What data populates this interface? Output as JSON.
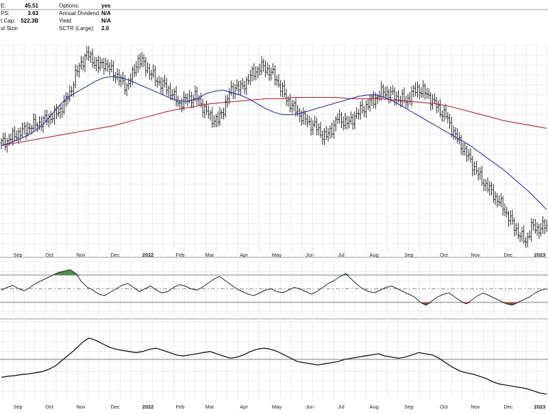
{
  "info": [
    {
      "label": "E:",
      "value": "45.51",
      "label2": "Options:",
      "value2": "yes"
    },
    {
      "label": "PS:",
      "value": "3.63",
      "label2": "Annual Dividend:",
      "value2": "N/A"
    },
    {
      "label": "t Cap:",
      "value": "522.3B",
      "label2": "Yield:",
      "value2": "N/A"
    },
    {
      "label": "st Size:",
      "value": "",
      "label2": "SCTR (Large):",
      "value2": "2.0"
    }
  ],
  "colors": {
    "price": "#111111",
    "ma_fast": "#2b2bb0",
    "ma_slow": "#b0243a",
    "osc_fill_up": "#4f8a4f",
    "osc_fill_down": "#a04444",
    "grid": "#d9d9d9",
    "border": "#9a9a9a"
  },
  "chart_data": [
    {
      "type": "line",
      "panel": "price",
      "x_ticks": [
        "Sep",
        "Oct",
        "Nov",
        "Dec",
        "2022",
        "Feb",
        "Mar",
        "Apr",
        "May",
        "Jun",
        "Jul",
        "Aug",
        "Sep",
        "Oct",
        "Nov",
        "Dec",
        "2023"
      ],
      "bold_ticks": [
        "2022",
        "2023"
      ],
      "series": [
        {
          "kind": "ohlc",
          "values": [
            180,
            182,
            185,
            188,
            190,
            193,
            195,
            197,
            200,
            202,
            205,
            212,
            220,
            235,
            245,
            252,
            248,
            242,
            245,
            240,
            236,
            230,
            226,
            235,
            248,
            244,
            238,
            232,
            228,
            225,
            220,
            212,
            214,
            216,
            218,
            212,
            205,
            200,
            198,
            208,
            220,
            226,
            224,
            230,
            236,
            240,
            242,
            238,
            234,
            225,
            216,
            210,
            205,
            200,
            196,
            194,
            188,
            185,
            192,
            200,
            198,
            196,
            202,
            206,
            210,
            214,
            218,
            222,
            220,
            218,
            216,
            214,
            220,
            224,
            222,
            218,
            212,
            206,
            202,
            192,
            183,
            176,
            168,
            160,
            152,
            146,
            140,
            134,
            128,
            120,
            112,
            105,
            100,
            112,
            110,
            112
          ]
        },
        {
          "kind": "moving-average-fast",
          "values": [
            178,
            180,
            183,
            186,
            190,
            196,
            204,
            212,
            218,
            222,
            226,
            230,
            233,
            234,
            233,
            231,
            228,
            225,
            222,
            219,
            216,
            214,
            214,
            216,
            220,
            222,
            223,
            221,
            219,
            216,
            212,
            208,
            205,
            203,
            203,
            204,
            206,
            208,
            210,
            212,
            214,
            216,
            218,
            219,
            219,
            217,
            214,
            210,
            206,
            202,
            198,
            194,
            190,
            186,
            182,
            178,
            173,
            168,
            163,
            158,
            152,
            146,
            140,
            133,
            126
          ]
        },
        {
          "kind": "moving-average-slow",
          "values": [
            178,
            180,
            182,
            184,
            186,
            188,
            190,
            192,
            194,
            197,
            200,
            203,
            206,
            208,
            210,
            212,
            213,
            214,
            215,
            216,
            216,
            217,
            217,
            217,
            217,
            216,
            216,
            216,
            215,
            214,
            213,
            212,
            210,
            207,
            204,
            201,
            198,
            196,
            194,
            192
          ]
        }
      ]
    },
    {
      "type": "line",
      "panel": "oscillator",
      "reference_lines": [
        70,
        50,
        30
      ],
      "values": [
        48,
        52,
        55,
        50,
        47,
        52,
        58,
        62,
        66,
        70,
        74,
        76,
        78,
        72,
        60,
        52,
        48,
        42,
        40,
        45,
        50,
        55,
        58,
        52,
        46,
        50,
        54,
        48,
        44,
        46,
        52,
        56,
        54,
        50,
        48,
        52,
        58,
        64,
        68,
        62,
        56,
        50,
        46,
        42,
        40,
        44,
        48,
        50,
        46,
        44,
        48,
        52,
        50,
        46,
        42,
        46,
        52,
        58,
        62,
        68,
        72,
        64,
        56,
        50,
        46,
        44,
        48,
        52,
        54,
        50,
        46,
        42,
        38,
        30,
        26,
        32,
        38,
        42,
        44,
        38,
        32,
        28,
        34,
        40,
        44,
        40,
        36,
        32,
        28,
        26,
        30,
        34,
        38,
        44,
        48,
        50
      ]
    },
    {
      "type": "line",
      "panel": "relative-strength",
      "x_ticks": [
        "Sep",
        "Oct",
        "Nov",
        "Dec",
        "2022",
        "Feb",
        "Mar",
        "Apr",
        "May",
        "Jun",
        "Jul",
        "Aug",
        "Sep",
        "Oct",
        "Nov",
        "Dec",
        "2023"
      ],
      "bold_ticks": [
        "2022",
        "2023"
      ],
      "values": [
        30,
        32,
        33,
        35,
        36,
        38,
        40,
        44,
        50,
        60,
        70,
        80,
        92,
        100,
        96,
        90,
        84,
        80,
        78,
        76,
        74,
        76,
        80,
        82,
        78,
        74,
        70,
        68,
        70,
        72,
        74,
        76,
        72,
        68,
        64,
        66,
        70,
        76,
        80,
        82,
        80,
        76,
        70,
        64,
        58,
        56,
        54,
        52,
        54,
        56,
        58,
        62,
        64,
        66,
        68,
        70,
        72,
        68,
        66,
        64,
        66,
        70,
        74,
        72,
        70,
        64,
        56,
        48,
        42,
        38,
        36,
        32,
        28,
        22,
        18,
        16,
        14,
        12,
        10,
        6,
        2,
        0
      ]
    }
  ]
}
